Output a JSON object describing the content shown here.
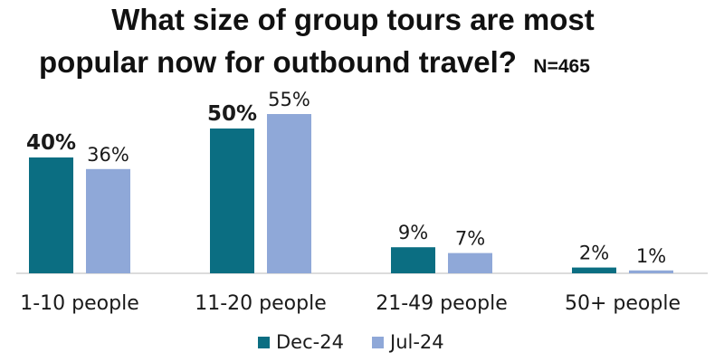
{
  "chart_data": {
    "type": "bar",
    "title_lines": [
      "What size of group tours are most",
      "popular now for outbound travel?"
    ],
    "title_suffix": "N=465",
    "categories": [
      "1-10 people",
      "11-20 people",
      "21-49 people",
      "50+ people"
    ],
    "series": [
      {
        "name": "Dec-24",
        "color": "#0b6e82",
        "values": [
          40,
          50,
          9,
          2
        ],
        "labels": [
          "40%",
          "50%",
          "9%",
          "2%"
        ],
        "bold_labels": [
          true,
          true,
          false,
          false
        ]
      },
      {
        "name": "Jul-24",
        "color": "#8fa8d8",
        "values": [
          36,
          55,
          7,
          1
        ],
        "labels": [
          "36%",
          "55%",
          "7%",
          "1%"
        ],
        "bold_labels": [
          false,
          false,
          false,
          false
        ]
      }
    ],
    "ylim": [
      0,
      60
    ],
    "grid": false,
    "legend_position": "bottom",
    "baseline_color": "#d0d0d0"
  }
}
